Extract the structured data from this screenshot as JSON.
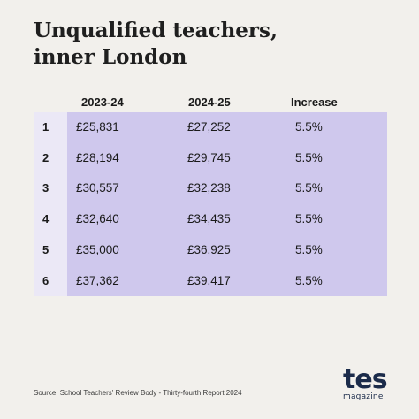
{
  "title": {
    "line1": "Unqualified teachers,",
    "line2": "inner London"
  },
  "table": {
    "headers": [
      "2023-24",
      "2024-25",
      "Increase"
    ],
    "rows": [
      {
        "num": "1",
        "y2023": "£25,831",
        "y2024": "£27,252",
        "increase": "5.5%"
      },
      {
        "num": "2",
        "y2023": "£28,194",
        "y2024": "£29,745",
        "increase": "5.5%"
      },
      {
        "num": "3",
        "y2023": "£30,557",
        "y2024": "£32,238",
        "increase": "5.5%"
      },
      {
        "num": "4",
        "y2023": "£32,640",
        "y2024": "£34,435",
        "increase": "5.5%"
      },
      {
        "num": "5",
        "y2023": "£35,000",
        "y2024": "£36,925",
        "increase": "5.5%"
      },
      {
        "num": "6",
        "y2023": "£37,362",
        "y2024": "£39,417",
        "increase": "5.5%"
      }
    ]
  },
  "source": "Source: School Teachers' Review Body - Thirty-fourth Report 2024",
  "logo": {
    "name": "tes",
    "subtitle": "magazine"
  },
  "colors": {
    "background": "#f2f0ec",
    "table_fill": "#cfc8ed",
    "rownum_fill": "#ebe8f6",
    "logo": "#1b2b4a"
  }
}
